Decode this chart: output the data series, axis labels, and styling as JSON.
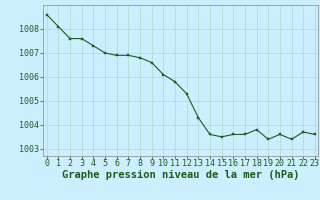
{
  "x": [
    0,
    1,
    2,
    3,
    4,
    5,
    6,
    7,
    8,
    9,
    10,
    11,
    12,
    13,
    14,
    15,
    16,
    17,
    18,
    19,
    20,
    21,
    22,
    23
  ],
  "y": [
    1008.6,
    1008.1,
    1007.6,
    1007.6,
    1007.3,
    1007.0,
    1006.9,
    1006.9,
    1006.8,
    1006.6,
    1006.1,
    1005.8,
    1005.3,
    1004.3,
    1003.6,
    1003.5,
    1003.6,
    1003.6,
    1003.8,
    1003.4,
    1003.6,
    1003.4,
    1003.7,
    1003.6
  ],
  "ylim": [
    1002.7,
    1009.0
  ],
  "yticks": [
    1003,
    1004,
    1005,
    1006,
    1007,
    1008
  ],
  "xticks": [
    0,
    1,
    2,
    3,
    4,
    5,
    6,
    7,
    8,
    9,
    10,
    11,
    12,
    13,
    14,
    15,
    16,
    17,
    18,
    19,
    20,
    21,
    22,
    23
  ],
  "line_color": "#1a5c1a",
  "marker_color": "#1a5c1a",
  "bg_color": "#cceeff",
  "grid_color": "#aaddcc",
  "xlabel": "Graphe pression niveau de la mer (hPa)",
  "xlabel_fontsize": 7.5,
  "tick_fontsize": 6.0,
  "ytick_fontsize": 6.0
}
